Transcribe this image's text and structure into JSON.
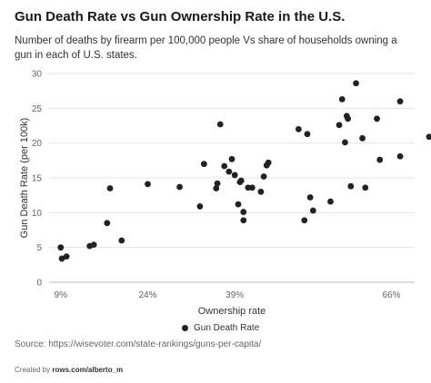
{
  "chart_data": {
    "type": "scatter",
    "title": "Gun Death Rate vs Gun Ownership Rate in the U.S.",
    "subtitle": "Number of deaths by firearm per 100,000 people Vs share of households owning a gun in each of U.S. states.",
    "xlabel": "Ownership rate",
    "ylabel": "Gun Death Rate (per 100k)",
    "xlim": [
      7,
      70
    ],
    "ylim": [
      0,
      30
    ],
    "x_ticks": [
      9,
      24,
      39,
      66
    ],
    "x_tick_labels": [
      "9%",
      "24%",
      "39%",
      "66%"
    ],
    "y_ticks": [
      0,
      5,
      10,
      15,
      20,
      25,
      30
    ],
    "grid": "horizontal",
    "legend": "bottom-center",
    "color": "#222222",
    "series": [
      {
        "name": "Gun Death Rate",
        "points": [
          [
            9,
            5.0
          ],
          [
            9.2,
            3.4
          ],
          [
            10,
            3.7
          ],
          [
            14,
            5.2
          ],
          [
            14.7,
            5.4
          ],
          [
            17,
            8.5
          ],
          [
            17.5,
            13.5
          ],
          [
            19.5,
            6.0
          ],
          [
            24,
            14.1
          ],
          [
            29.5,
            13.7
          ],
          [
            33,
            10.9
          ],
          [
            33.7,
            17.0
          ],
          [
            35.8,
            13.5
          ],
          [
            36,
            14.2
          ],
          [
            36.5,
            22.7
          ],
          [
            37.2,
            16.7
          ],
          [
            38,
            15.9
          ],
          [
            38.5,
            17.7
          ],
          [
            39,
            15.4
          ],
          [
            39.6,
            11.2
          ],
          [
            39.9,
            14.4
          ],
          [
            40.1,
            14.6
          ],
          [
            40.5,
            10.1
          ],
          [
            40.5,
            8.9
          ],
          [
            41.3,
            13.6
          ],
          [
            42,
            13.6
          ],
          [
            43.5,
            13.0
          ],
          [
            44,
            15.2
          ],
          [
            44.5,
            16.8
          ],
          [
            44.8,
            17.2
          ],
          [
            50,
            22.0
          ],
          [
            51,
            8.9
          ],
          [
            51.5,
            21.3
          ],
          [
            52,
            12.2
          ],
          [
            52.5,
            10.3
          ],
          [
            55.5,
            11.6
          ],
          [
            57,
            22.6
          ],
          [
            57.5,
            26.3
          ],
          [
            58,
            20.1
          ],
          [
            58.3,
            23.9
          ],
          [
            58.5,
            23.5
          ],
          [
            59,
            13.8
          ],
          [
            59.9,
            28.6
          ],
          [
            61,
            20.7
          ],
          [
            61.5,
            13.6
          ],
          [
            63.5,
            23.5
          ],
          [
            64,
            17.6
          ],
          [
            67.5,
            26.0
          ],
          [
            67.5,
            18.1
          ],
          [
            72.5,
            20.9
          ]
        ]
      }
    ]
  },
  "legend_label": "Gun Death Rate",
  "source": "Source: https://wisevoter.com/state-rankings/guns-per-capita/",
  "credit_prefix": "Created by ",
  "credit_link": "rows.com/alberto_m"
}
